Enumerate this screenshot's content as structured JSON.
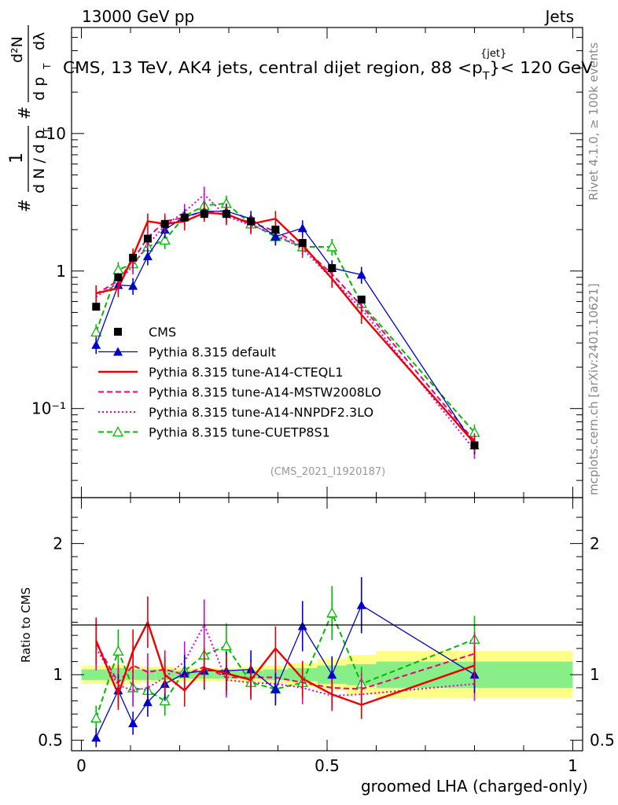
{
  "header": {
    "left": "13000 GeV pp",
    "right": "Jets",
    "title_prefix": "CMS, 13 TeV, AK4 jets, central dijet region, 88 <p",
    "title_sup": "{jet}",
    "title_sub": "T",
    "title_suffix": "}< 120 GeV",
    "analysis_id": "(CMS_2021_I1920187)"
  },
  "side_labels": {
    "rivet": "Rivet 4.1.0, ≥ 100k events",
    "mcplots": "mcplots.cern.ch [arXiv:2401.10621]"
  },
  "ylabel_main": {
    "hash1": "#",
    "one": "1",
    "dN": "d N / d p",
    "sub_T": "T",
    "hash2": "#",
    "d2N": "d²N",
    "dpTdl": "d p",
    "dl": "dλ",
    "sub_T2": "T"
  },
  "colors": {
    "cms": "#000000",
    "default": "#0000cc",
    "cteql1": "#ee0000",
    "mstw": "#ee0077",
    "nnpdf": "#dd00dd",
    "cuetp8s1": "#00bb00",
    "band_yellow": "#ffff88",
    "band_green": "#88ee88"
  },
  "chart_data": [
    {
      "type": "line",
      "panel": "main",
      "yscale": "log",
      "xlim": [
        -0.02,
        1.02
      ],
      "ylim": [
        0.0225,
        59
      ],
      "x_ticks": [
        0,
        0.5,
        1
      ],
      "y_tick_labels": [
        {
          "value": 10,
          "label": "10"
        },
        {
          "value": 1,
          "label": "1"
        },
        {
          "value": 0.1,
          "label": "10⁻¹"
        }
      ],
      "x": [
        0.03,
        0.075,
        0.105,
        0.135,
        0.17,
        0.21,
        0.25,
        0.295,
        0.345,
        0.395,
        0.45,
        0.51,
        0.57,
        0.8
      ],
      "series": [
        {
          "key": "cms",
          "name": "CMS",
          "marker": "square",
          "style": "none",
          "values": [
            0.55,
            0.9,
            1.25,
            1.72,
            2.2,
            2.45,
            2.6,
            2.6,
            2.3,
            2.0,
            1.6,
            1.05,
            0.62,
            0.054
          ]
        },
        {
          "key": "default",
          "name": "Pythia 8.315 default",
          "marker": "triangle",
          "style": "solid",
          "values": [
            0.29,
            0.79,
            0.78,
            1.28,
            2.0,
            2.48,
            2.72,
            2.72,
            2.4,
            1.78,
            2.05,
            1.05,
            0.94,
            0.054
          ]
        },
        {
          "key": "cteql1",
          "name": "Pythia 8.315 tune-A14-CTEQL1",
          "marker": "none",
          "style": "solid",
          "values": [
            0.69,
            0.75,
            1.28,
            2.3,
            2.2,
            2.3,
            2.65,
            2.6,
            2.2,
            2.4,
            1.55,
            0.88,
            0.48,
            0.056
          ]
        },
        {
          "key": "mstw",
          "name": "Pythia 8.315 tune-A14-MSTW2008LO",
          "marker": "none",
          "style": "dashed",
          "values": [
            0.68,
            0.85,
            1.2,
            1.75,
            2.3,
            2.45,
            2.75,
            2.55,
            2.25,
            1.95,
            1.5,
            0.95,
            0.56,
            0.058
          ]
        },
        {
          "key": "nnpdf",
          "name": "Pythia 8.315 tune-A14-NNPDF2.3LO",
          "marker": "none",
          "style": "dotted",
          "values": [
            0.65,
            0.82,
            1.1,
            1.55,
            2.15,
            2.7,
            3.6,
            2.5,
            2.15,
            1.85,
            1.45,
            0.88,
            0.53,
            0.05
          ]
        },
        {
          "key": "cuetp8s1",
          "name": "Pythia 8.315 tune-CUETP8S1",
          "marker": "open-triangle",
          "style": "dashed",
          "values": [
            0.36,
            1.02,
            1.13,
            1.5,
            1.68,
            2.5,
            3.0,
            3.1,
            2.2,
            1.78,
            1.5,
            1.5,
            0.58,
            0.067
          ]
        }
      ]
    },
    {
      "type": "line",
      "panel": "ratio",
      "ylabel": "Ratio to CMS",
      "xlabel": "groomed LHA (charged-only)",
      "xlim": [
        -0.02,
        1.02
      ],
      "ylim": [
        0.42,
        2.35
      ],
      "y_ticks": [
        0.5,
        1,
        2
      ],
      "x_ticks": [
        0,
        0.5,
        1
      ],
      "x": [
        0.03,
        0.075,
        0.105,
        0.135,
        0.17,
        0.21,
        0.25,
        0.295,
        0.345,
        0.395,
        0.45,
        0.51,
        0.57,
        0.8
      ],
      "bands": {
        "edges": [
          0,
          0.06,
          0.09,
          0.12,
          0.15,
          0.19,
          0.23,
          0.27,
          0.32,
          0.37,
          0.42,
          0.48,
          0.54,
          0.6,
          1.0
        ],
        "stat": [
          0.04,
          0.05,
          0.04,
          0.04,
          0.04,
          0.03,
          0.03,
          0.03,
          0.03,
          0.04,
          0.05,
          0.07,
          0.08,
          0.1
        ],
        "total": [
          0.07,
          0.08,
          0.07,
          0.06,
          0.06,
          0.05,
          0.05,
          0.05,
          0.06,
          0.07,
          0.09,
          0.12,
          0.15,
          0.18
        ]
      },
      "series": [
        {
          "key": "default",
          "values": [
            0.52,
            0.88,
            0.63,
            0.79,
            0.93,
            1.01,
            1.03,
            1.03,
            1.04,
            0.89,
            1.37,
            1.0,
            1.53,
            1.0
          ]
        },
        {
          "key": "cteql1",
          "values": [
            1.26,
            0.85,
            1.18,
            1.4,
            1.0,
            0.88,
            1.05,
            1.01,
            0.96,
            1.2,
            0.97,
            0.85,
            0.77,
            1.07
          ]
        },
        {
          "key": "mstw",
          "values": [
            1.24,
            0.94,
            1.07,
            1.02,
            1.04,
            1.0,
            1.06,
            0.98,
            0.98,
            0.98,
            0.94,
            0.9,
            0.89,
            1.16
          ]
        },
        {
          "key": "nnpdf",
          "values": [
            1.2,
            0.92,
            0.88,
            0.9,
            0.98,
            1.1,
            1.38,
            0.96,
            0.94,
            0.93,
            0.9,
            0.84,
            0.85,
            0.93
          ]
        },
        {
          "key": "cuetp8s1",
          "values": [
            0.67,
            1.18,
            0.9,
            0.88,
            0.8,
            1.03,
            1.15,
            1.22,
            0.94,
            0.89,
            0.94,
            1.47,
            0.93,
            1.27
          ]
        }
      ]
    }
  ]
}
